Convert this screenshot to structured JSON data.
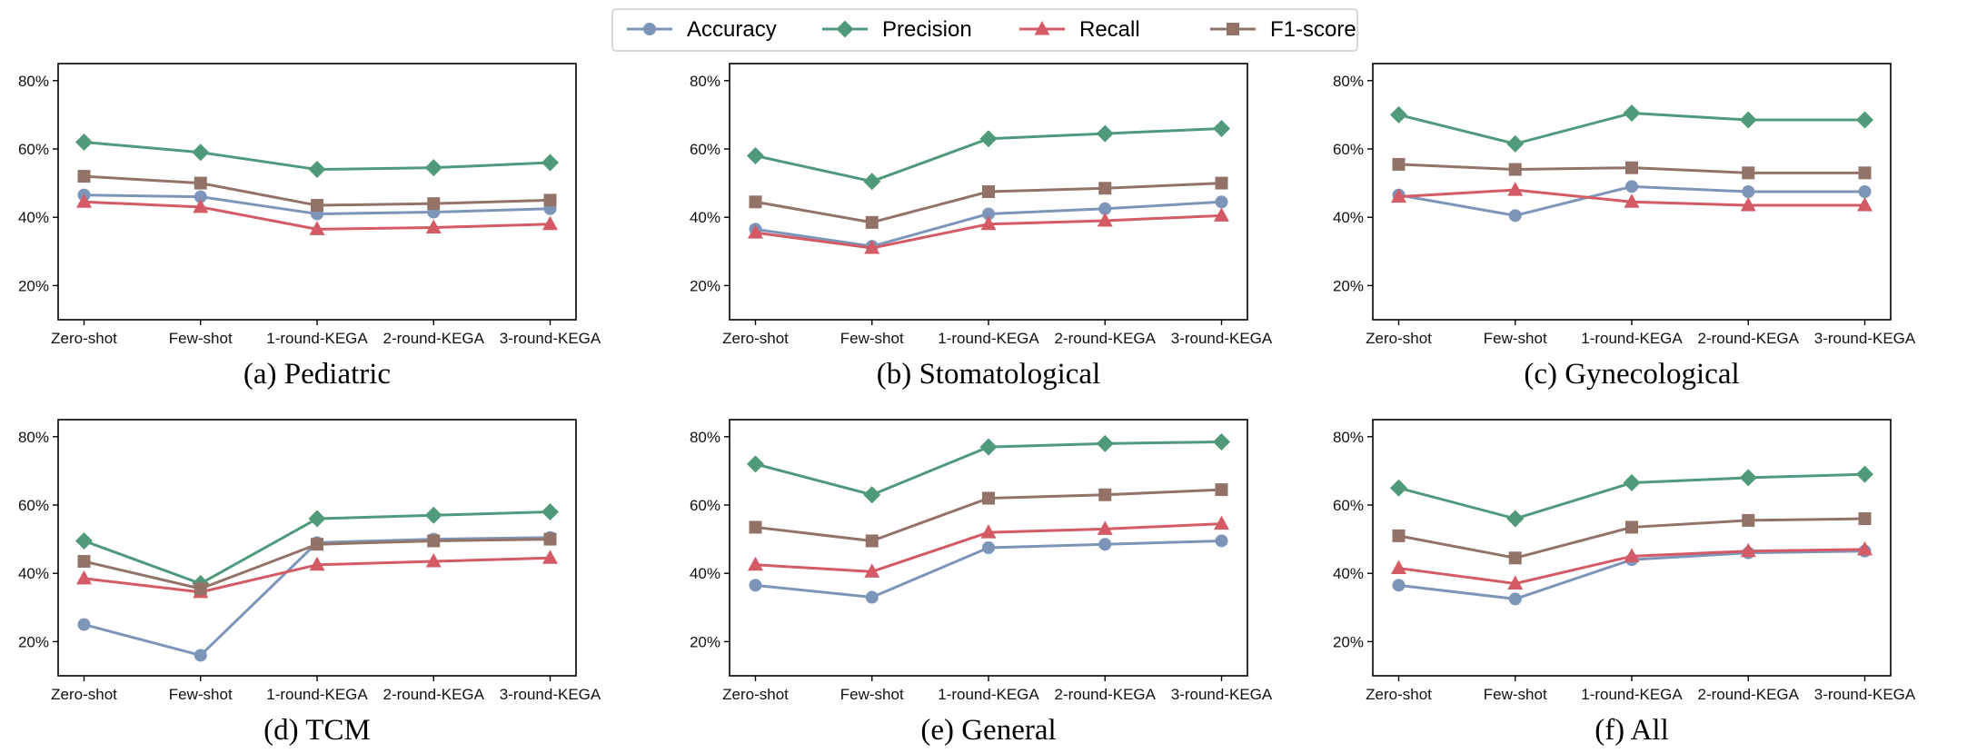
{
  "chart_data": [
    {
      "type": "line",
      "caption": "(a) Pediatric",
      "categories": [
        "Zero-shot",
        "Few-shot",
        "1-round-KEGA",
        "2-round-KEGA",
        "3-round-KEGA"
      ],
      "ylim": [
        10,
        85
      ],
      "yticks": [
        20,
        40,
        60,
        80
      ],
      "series": [
        {
          "name": "Accuracy",
          "values": [
            46.5,
            46,
            41,
            41.5,
            42.5
          ]
        },
        {
          "name": "Precision",
          "values": [
            62,
            59,
            54,
            54.5,
            56
          ]
        },
        {
          "name": "Recall",
          "values": [
            44.5,
            43,
            36.5,
            37,
            38
          ]
        },
        {
          "name": "F1-score",
          "values": [
            52,
            50,
            43.5,
            44,
            45
          ]
        }
      ]
    },
    {
      "type": "line",
      "caption": "(b) Stomatological",
      "categories": [
        "Zero-shot",
        "Few-shot",
        "1-round-KEGA",
        "2-round-KEGA",
        "3-round-KEGA"
      ],
      "ylim": [
        10,
        85
      ],
      "yticks": [
        20,
        40,
        60,
        80
      ],
      "series": [
        {
          "name": "Accuracy",
          "values": [
            36.5,
            31.5,
            41,
            42.5,
            44.5
          ]
        },
        {
          "name": "Precision",
          "values": [
            58,
            50.5,
            63,
            64.5,
            66
          ]
        },
        {
          "name": "Recall",
          "values": [
            35.5,
            31,
            38,
            39,
            40.5
          ]
        },
        {
          "name": "F1-score",
          "values": [
            44.5,
            38.5,
            47.5,
            48.5,
            50
          ]
        }
      ]
    },
    {
      "type": "line",
      "caption": "(c) Gynecological",
      "categories": [
        "Zero-shot",
        "Few-shot",
        "1-round-KEGA",
        "2-round-KEGA",
        "3-round-KEGA"
      ],
      "ylim": [
        10,
        85
      ],
      "yticks": [
        20,
        40,
        60,
        80
      ],
      "series": [
        {
          "name": "Accuracy",
          "values": [
            46.5,
            40.5,
            49,
            47.5,
            47.5
          ]
        },
        {
          "name": "Precision",
          "values": [
            70,
            61.5,
            70.5,
            68.5,
            68.5
          ]
        },
        {
          "name": "Recall",
          "values": [
            46,
            48,
            44.5,
            43.5,
            43.5
          ]
        },
        {
          "name": "F1-score",
          "values": [
            55.5,
            54,
            54.5,
            53,
            53
          ]
        }
      ]
    },
    {
      "type": "line",
      "caption": "(d) TCM",
      "categories": [
        "Zero-shot",
        "Few-shot",
        "1-round-KEGA",
        "2-round-KEGA",
        "3-round-KEGA"
      ],
      "ylim": [
        10,
        85
      ],
      "yticks": [
        20,
        40,
        60,
        80
      ],
      "series": [
        {
          "name": "Accuracy",
          "values": [
            25,
            16,
            49,
            50,
            50.5
          ]
        },
        {
          "name": "Precision",
          "values": [
            49.5,
            37,
            56,
            57,
            58
          ]
        },
        {
          "name": "Recall",
          "values": [
            38.5,
            34.5,
            42.5,
            43.5,
            44.5
          ]
        },
        {
          "name": "F1-score",
          "values": [
            43.5,
            35.5,
            48.5,
            49.5,
            50
          ]
        }
      ]
    },
    {
      "type": "line",
      "caption": "(e) General",
      "categories": [
        "Zero-shot",
        "Few-shot",
        "1-round-KEGA",
        "2-round-KEGA",
        "3-round-KEGA"
      ],
      "ylim": [
        10,
        85
      ],
      "yticks": [
        20,
        40,
        60,
        80
      ],
      "series": [
        {
          "name": "Accuracy",
          "values": [
            36.5,
            33,
            47.5,
            48.5,
            49.5
          ]
        },
        {
          "name": "Precision",
          "values": [
            72,
            63,
            77,
            78,
            78.5
          ]
        },
        {
          "name": "Recall",
          "values": [
            42.5,
            40.5,
            52,
            53,
            54.5
          ]
        },
        {
          "name": "F1-score",
          "values": [
            53.5,
            49.5,
            62,
            63,
            64.5
          ]
        }
      ]
    },
    {
      "type": "line",
      "caption": "(f) All",
      "categories": [
        "Zero-shot",
        "Few-shot",
        "1-round-KEGA",
        "2-round-KEGA",
        "3-round-KEGA"
      ],
      "ylim": [
        10,
        85
      ],
      "yticks": [
        20,
        40,
        60,
        80
      ],
      "series": [
        {
          "name": "Accuracy",
          "values": [
            36.5,
            32.5,
            44,
            46,
            46.5
          ]
        },
        {
          "name": "Precision",
          "values": [
            65,
            56,
            66.5,
            68,
            69
          ]
        },
        {
          "name": "Recall",
          "values": [
            41.5,
            37,
            45,
            46.5,
            47
          ]
        },
        {
          "name": "F1-score",
          "values": [
            51,
            44.5,
            53.5,
            55.5,
            56
          ]
        }
      ]
    }
  ],
  "legend": {
    "placement": "top-center",
    "entries": [
      {
        "name": "Accuracy",
        "color": "#7e95ba",
        "marker": "circle"
      },
      {
        "name": "Precision",
        "color": "#4f9a7a",
        "marker": "diamond"
      },
      {
        "name": "Recall",
        "color": "#d45a66",
        "marker": "triangle"
      },
      {
        "name": "F1-score",
        "color": "#937368",
        "marker": "square"
      }
    ]
  },
  "tick_suffix": "%"
}
